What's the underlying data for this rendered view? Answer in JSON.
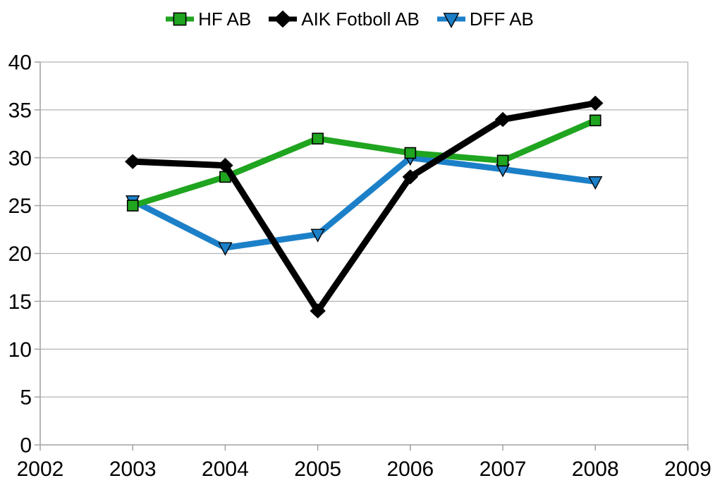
{
  "chart_data": {
    "type": "line",
    "title": "",
    "xlabel": "",
    "ylabel": "",
    "x": [
      2003,
      2004,
      2005,
      2006,
      2007,
      2008
    ],
    "series": [
      {
        "name": "HF AB",
        "color": "#1fa51f",
        "marker": "square",
        "line_width": 8.5,
        "values": [
          25,
          28,
          32,
          30.5,
          29.7,
          33.9
        ]
      },
      {
        "name": "AIK Fotboll AB",
        "color": "#000000",
        "marker": "diamond",
        "line_width": 9,
        "values": [
          29.6,
          29.2,
          14,
          28,
          34,
          35.7
        ]
      },
      {
        "name": "DFF AB",
        "color": "#1c80c8",
        "marker": "triangle-down",
        "line_width": 8.5,
        "values": [
          25.5,
          20.6,
          22,
          30,
          28.8,
          27.5
        ]
      }
    ],
    "z_order": [
      2,
      0,
      1
    ],
    "xlim": [
      2002,
      2009
    ],
    "ylim": [
      0,
      40
    ],
    "x_ticks": [
      "2002",
      "2003",
      "2004",
      "2005",
      "2006",
      "2007",
      "2008",
      "2009"
    ],
    "x_tick_values": [
      2002,
      2003,
      2004,
      2005,
      2006,
      2007,
      2008,
      2009
    ],
    "y_ticks": [
      "0",
      "5",
      "10",
      "15",
      "20",
      "25",
      "30",
      "35",
      "40"
    ],
    "y_tick_values": [
      0,
      5,
      10,
      15,
      20,
      25,
      30,
      35,
      40
    ],
    "grid": "horizontal",
    "legend_position": "top-center",
    "colors": {
      "grid": "#b3b3b3",
      "axis": "#a6a6a6",
      "text": "#000000",
      "background": "#ffffff"
    }
  }
}
